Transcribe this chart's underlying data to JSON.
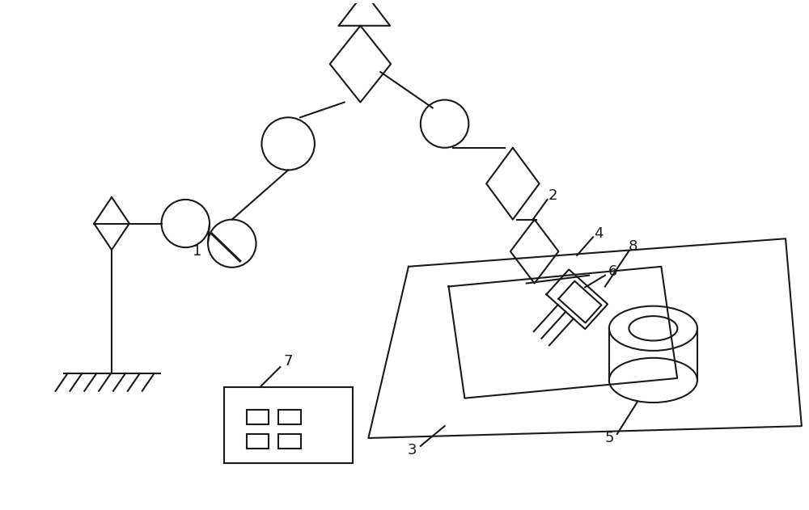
{
  "bg_color": "#ffffff",
  "line_color": "#1a1a1a",
  "lw": 1.5,
  "label_fontsize": 13
}
